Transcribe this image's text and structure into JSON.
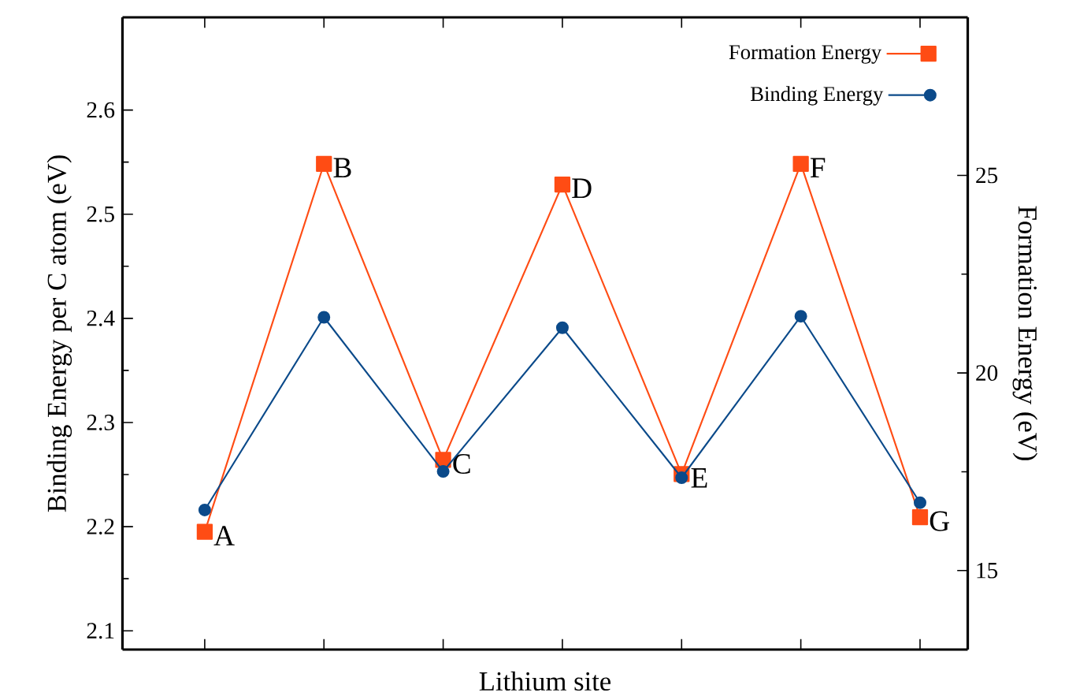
{
  "chart_data": {
    "type": "line",
    "xlabel": "Lithium site",
    "ylabel": "Binding Energy per C atom (eV)",
    "y2label": "Formation Energy (eV)",
    "categories": [
      null,
      null,
      null,
      null,
      null,
      null,
      null
    ],
    "ylim": [
      2.082,
      2.689
    ],
    "yticks": [
      2.1,
      2.2,
      2.3,
      2.4,
      2.5,
      2.6
    ],
    "y2lim": [
      13,
      29
    ],
    "y2ticks": [
      15,
      20,
      25
    ],
    "series": [
      {
        "name": "Formation Energy",
        "color": "#ff4c14",
        "marker": "square",
        "axis": "y2",
        "values": [
          15.98,
          25.29,
          17.8,
          24.77,
          17.44,
          25.29,
          16.35
        ]
      },
      {
        "name": "Binding Energy",
        "color": "#0b4a8a",
        "marker": "circle",
        "values": [
          2.216,
          2.401,
          2.253,
          2.391,
          2.247,
          2.402,
          2.223
        ]
      }
    ],
    "annotations": [
      "A",
      "B",
      "C",
      "D",
      "E",
      "F",
      "G"
    ],
    "legend": "top right",
    "line_style": "solid",
    "grid": false
  }
}
